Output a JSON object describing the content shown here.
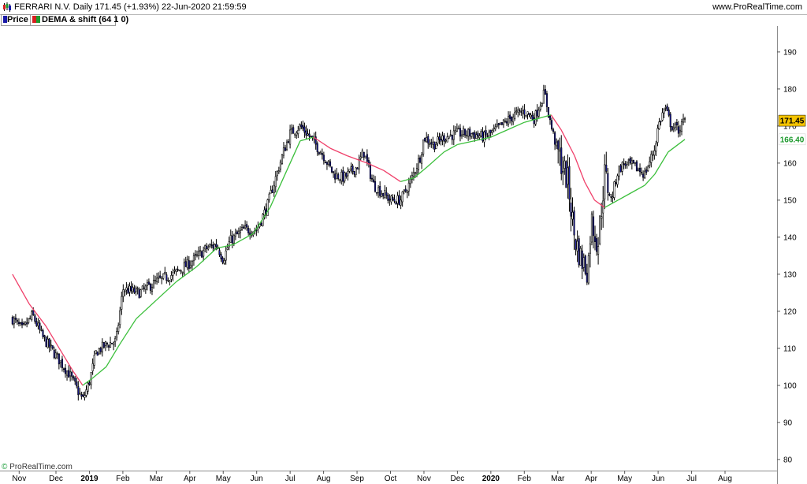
{
  "header": {
    "title": "FERRARI N.V. Daily 171.45 (+1.93%) 22-Jun-2020 21:59:59",
    "site": "www.ProRealTime.com"
  },
  "legend": [
    {
      "label": "Price",
      "colors": [
        "#1a1aa8",
        "#000000"
      ]
    },
    {
      "label": "DEMA & shift (64 1 0)",
      "colors": [
        "#d62020",
        "#1e9a2e"
      ]
    }
  ],
  "watermark": {
    "symbol": "©",
    "text": "ProRealTime.com"
  },
  "price_badges": [
    {
      "value": "171.45",
      "bg": "#f5c400",
      "fg": "#000000"
    },
    {
      "value": "166.40",
      "bg": "#ffffff",
      "fg": "#1e9a2e"
    }
  ],
  "icons": {
    "app": "candlestick-app-icon"
  },
  "colors": {
    "candle_body": "#1a1aa8",
    "wick": "#000000",
    "dema_up": "#3bbf3b",
    "dema_down": "#f0406a"
  },
  "chart_data": {
    "type": "candlestick",
    "title": "FERRARI N.V. Daily 171.45 (+1.93%) 22-Jun-2020 21:59:59",
    "ylim": [
      77,
      197
    ],
    "y_ticks": [
      80,
      90,
      100,
      110,
      120,
      130,
      140,
      150,
      160,
      170,
      180,
      190
    ],
    "x_ticks": [
      {
        "label": "Nov",
        "t": -1.1
      },
      {
        "label": "Dec",
        "t": 0
      },
      {
        "label": "2019",
        "t": 1
      },
      {
        "label": "Feb",
        "t": 2
      },
      {
        "label": "Mar",
        "t": 3
      },
      {
        "label": "Apr",
        "t": 4
      },
      {
        "label": "May",
        "t": 5
      },
      {
        "label": "Jun",
        "t": 6
      },
      {
        "label": "Jul",
        "t": 7
      },
      {
        "label": "Aug",
        "t": 8
      },
      {
        "label": "Sep",
        "t": 9
      },
      {
        "label": "Oct",
        "t": 10
      },
      {
        "label": "Nov",
        "t": 11
      },
      {
        "label": "Dec",
        "t": 12
      },
      {
        "label": "2020",
        "t": 13
      },
      {
        "label": "Feb",
        "t": 14
      },
      {
        "label": "Mar",
        "t": 15
      },
      {
        "label": "Apr",
        "t": 16
      },
      {
        "label": "May",
        "t": 17
      },
      {
        "label": "Jun",
        "t": 18
      },
      {
        "label": "Jul",
        "t": 19
      },
      {
        "label": "Aug",
        "t": 20
      }
    ],
    "price_path": [
      [
        -1.3,
        118
      ],
      [
        -1.0,
        115
      ],
      [
        -0.7,
        119
      ],
      [
        -0.4,
        113
      ],
      [
        0.0,
        108
      ],
      [
        0.4,
        103
      ],
      [
        0.8,
        96
      ],
      [
        1.0,
        101
      ],
      [
        1.2,
        109
      ],
      [
        1.5,
        111
      ],
      [
        1.8,
        112
      ],
      [
        2.0,
        126
      ],
      [
        2.5,
        125
      ],
      [
        3.0,
        128
      ],
      [
        3.5,
        130
      ],
      [
        4.0,
        133
      ],
      [
        4.5,
        137
      ],
      [
        4.8,
        138
      ],
      [
        5.0,
        134
      ],
      [
        5.2,
        139
      ],
      [
        5.6,
        142
      ],
      [
        6.0,
        142
      ],
      [
        6.3,
        148
      ],
      [
        6.6,
        157
      ],
      [
        6.8,
        163
      ],
      [
        7.0,
        168
      ],
      [
        7.3,
        170
      ],
      [
        7.6,
        167
      ],
      [
        8.0,
        162
      ],
      [
        8.3,
        157
      ],
      [
        8.6,
        156
      ],
      [
        9.0,
        159
      ],
      [
        9.2,
        163
      ],
      [
        9.5,
        154
      ],
      [
        10.0,
        150
      ],
      [
        10.3,
        150
      ],
      [
        10.6,
        155
      ],
      [
        10.9,
        162
      ],
      [
        11.0,
        167
      ],
      [
        11.3,
        165
      ],
      [
        11.6,
        167
      ],
      [
        12.0,
        168
      ],
      [
        12.4,
        168
      ],
      [
        12.8,
        167
      ],
      [
        13.0,
        168
      ],
      [
        13.3,
        170
      ],
      [
        13.7,
        173
      ],
      [
        14.0,
        174
      ],
      [
        14.3,
        172
      ],
      [
        14.6,
        179
      ],
      [
        14.8,
        170
      ],
      [
        15.0,
        163
      ],
      [
        15.3,
        155
      ],
      [
        15.5,
        140
      ],
      [
        15.7,
        134
      ],
      [
        15.9,
        131
      ],
      [
        16.0,
        145
      ],
      [
        16.2,
        138
      ],
      [
        16.4,
        157
      ],
      [
        16.6,
        150
      ],
      [
        16.8,
        158
      ],
      [
        17.0,
        160
      ],
      [
        17.3,
        159
      ],
      [
        17.6,
        157
      ],
      [
        17.9,
        164
      ],
      [
        18.0,
        170
      ],
      [
        18.2,
        175
      ],
      [
        18.4,
        170
      ],
      [
        18.6,
        169
      ],
      [
        18.8,
        171.45
      ]
    ],
    "dema_path": [
      [
        -1.3,
        130
      ],
      [
        -0.8,
        122
      ],
      [
        -0.3,
        116
      ],
      [
        0.1,
        110
      ],
      [
        0.5,
        104
      ],
      [
        0.8,
        100
      ],
      [
        1.1,
        102
      ],
      [
        1.5,
        105
      ],
      [
        1.9,
        111
      ],
      [
        2.4,
        118
      ],
      [
        3.0,
        123
      ],
      [
        3.6,
        128
      ],
      [
        4.2,
        132
      ],
      [
        4.8,
        137
      ],
      [
        5.3,
        138
      ],
      [
        5.9,
        141
      ],
      [
        6.4,
        148
      ],
      [
        6.9,
        158
      ],
      [
        7.3,
        166
      ],
      [
        7.7,
        167
      ],
      [
        8.2,
        164
      ],
      [
        8.7,
        162
      ],
      [
        9.3,
        160
      ],
      [
        9.8,
        158
      ],
      [
        10.3,
        155
      ],
      [
        10.7,
        156
      ],
      [
        11.1,
        159
      ],
      [
        11.6,
        163
      ],
      [
        12.0,
        165
      ],
      [
        12.5,
        166
      ],
      [
        13.0,
        167
      ],
      [
        13.5,
        169
      ],
      [
        14.0,
        171
      ],
      [
        14.4,
        172
      ],
      [
        14.8,
        173
      ],
      [
        15.1,
        169
      ],
      [
        15.5,
        162
      ],
      [
        15.8,
        155
      ],
      [
        16.1,
        150
      ],
      [
        16.4,
        148
      ],
      [
        16.8,
        150
      ],
      [
        17.2,
        152
      ],
      [
        17.6,
        154
      ],
      [
        17.9,
        157
      ],
      [
        18.3,
        163
      ],
      [
        18.8,
        166.4
      ]
    ],
    "candle_count": 420
  }
}
